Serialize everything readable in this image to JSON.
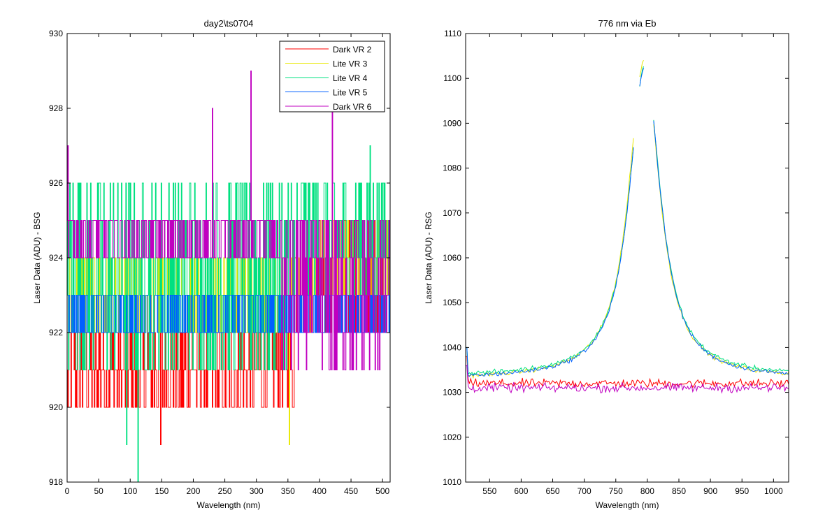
{
  "chart_data": [
    {
      "type": "line",
      "title": "day2\\ts0704",
      "xlabel": "Wavelength (nm)",
      "ylabel": "Laser Data (ADU) - BSG",
      "xlim": [
        0,
        512
      ],
      "ylim": [
        918,
        930
      ],
      "xticks": [
        0,
        50,
        100,
        150,
        200,
        250,
        300,
        350,
        400,
        450,
        500
      ],
      "yticks": [
        918,
        920,
        922,
        924,
        926,
        928,
        930
      ],
      "legend": "top-right",
      "series": [
        {
          "name": "Dark VR 2",
          "color": "#ff0000",
          "bands": [
            [
              0,
              360,
              920,
              922
            ],
            [
              360,
              512,
              922,
              925
            ]
          ],
          "outliers": [
            [
              148,
              919
            ]
          ]
        },
        {
          "name": "Lite VR 3",
          "color": "#e8e800",
          "bands": [
            [
              0,
              400,
              922,
              924
            ],
            [
              400,
              512,
              923,
              925
            ]
          ],
          "outliers": [
            [
              352,
              919
            ]
          ]
        },
        {
          "name": "Lite VR 4",
          "color": "#00e080",
          "bands": [
            [
              0,
              360,
              921,
              926
            ],
            [
              360,
              512,
              923,
              926
            ]
          ],
          "outliers": [
            [
              94,
              919
            ],
            [
              112,
              918
            ],
            [
              480,
              927
            ]
          ]
        },
        {
          "name": "Lite VR 5",
          "color": "#0060ff",
          "bands": [
            [
              0,
              512,
              922,
              923
            ],
            [
              400,
              512,
              923,
              925
            ]
          ],
          "outliers": []
        },
        {
          "name": "Dark VR 6",
          "color": "#c000c0",
          "bands": [
            [
              0,
              340,
              924,
              925
            ],
            [
              340,
              512,
              921,
              925
            ]
          ],
          "outliers": [
            [
              1,
              927
            ],
            [
              230,
              928
            ],
            [
              291,
              929
            ],
            [
              420,
              928
            ]
          ]
        }
      ]
    },
    {
      "type": "line",
      "title": "776 nm via Eb",
      "xlabel": "Wavelength (nm)",
      "ylabel": "Laser Data (ADU) - RSG",
      "xlim": [
        512,
        1024
      ],
      "ylim": [
        1010,
        1110
      ],
      "xticks": [
        550,
        600,
        650,
        700,
        750,
        800,
        850,
        900,
        950,
        1000
      ],
      "yticks": [
        1010,
        1020,
        1030,
        1040,
        1050,
        1060,
        1070,
        1080,
        1090,
        1100,
        1110
      ],
      "series": [
        {
          "name": "Dark VR 2",
          "color": "#ff0000",
          "shape": "flat",
          "level": 1032,
          "start": 1038
        },
        {
          "name": "Lite VR 3",
          "color": "#e8e800",
          "shape": "peak",
          "baseline": 1033,
          "peak": 1104,
          "center": 795,
          "start": 1040
        },
        {
          "name": "Lite VR 4",
          "color": "#00e080",
          "shape": "peak",
          "baseline": 1033.5,
          "peak": 1103,
          "center": 796,
          "start": 1040
        },
        {
          "name": "Lite VR 5",
          "color": "#0060ff",
          "shape": "peak",
          "baseline": 1033,
          "peak": 1103,
          "center": 796,
          "start": 1040
        },
        {
          "name": "Dark VR 6",
          "color": "#c000c0",
          "shape": "flat",
          "level": 1031,
          "start": 1036
        }
      ]
    }
  ]
}
